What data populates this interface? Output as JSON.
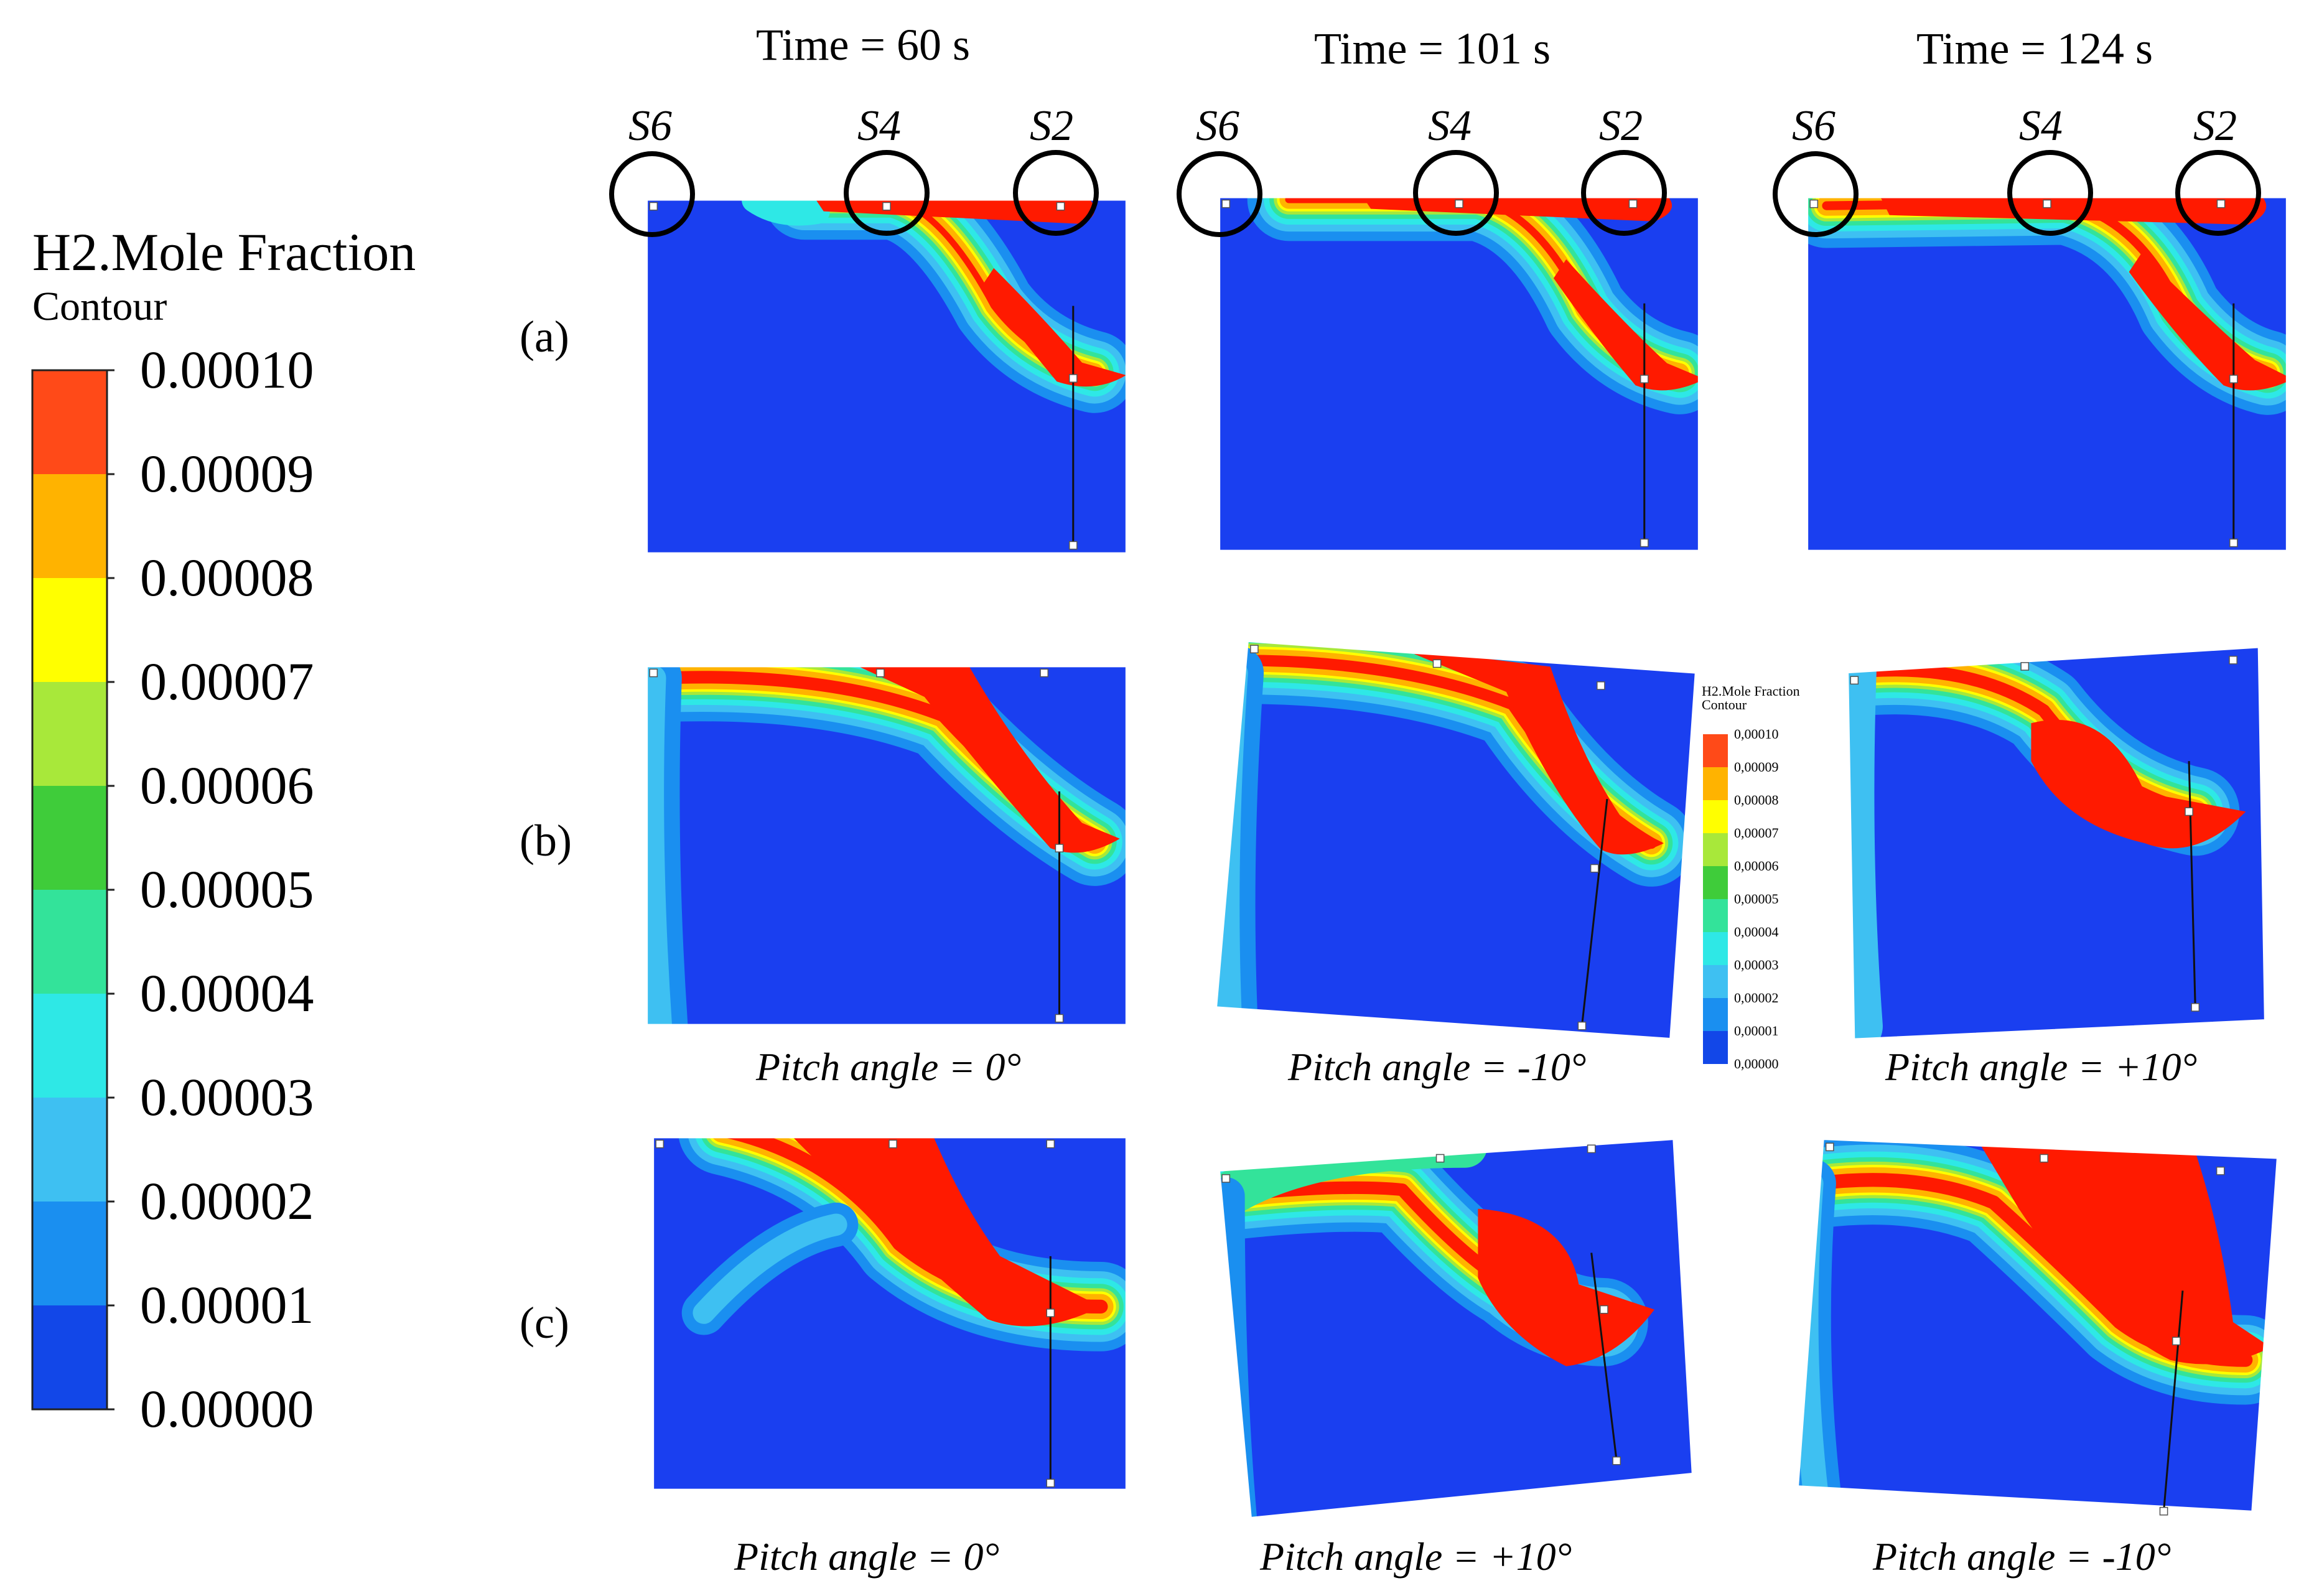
{
  "colors": {
    "levels": [
      "#1247e8",
      "#1a8ff0",
      "#3ec0f2",
      "#2ee8e6",
      "#33e39a",
      "#3fcc3a",
      "#a8e83a",
      "#ffff00",
      "#ffb300",
      "#ff4a18"
    ],
    "red": "#ff1a00",
    "blue": "#1a3ff0"
  },
  "legend": {
    "title": "H2.Mole Fraction",
    "subtitle": "Contour",
    "ticks": [
      "0.00010",
      "0.00009",
      "0.00008",
      "0.00007",
      "0.00006",
      "0.00005",
      "0.00004",
      "0.00003",
      "0.00002",
      "0.00001",
      "0.00000"
    ]
  },
  "mini_legend": {
    "title": "H2.Mole Fraction",
    "subtitle": "Contour",
    "ticks": [
      "0,00010",
      "0,00009",
      "0,00008",
      "0,00007",
      "0,00006",
      "0,00005",
      "0,00004",
      "0,00003",
      "0,00002",
      "0,00001",
      "0,00000"
    ]
  },
  "columns": [
    {
      "time": "Time = 60 s"
    },
    {
      "time": "Time = 101 s"
    },
    {
      "time": "Time = 124 s"
    }
  ],
  "sensors": [
    "S6",
    "S4",
    "S2"
  ],
  "rows": [
    {
      "label": "(a)",
      "pitch": [
        "",
        "",
        ""
      ]
    },
    {
      "label": "(b)",
      "pitch": [
        "Pitch angle = 0°",
        "Pitch angle = -10°",
        "Pitch angle = +10°"
      ]
    },
    {
      "label": "(c)",
      "pitch": [
        "Pitch angle = 0°",
        "Pitch angle = +10°",
        "Pitch angle = -10°"
      ]
    }
  ]
}
